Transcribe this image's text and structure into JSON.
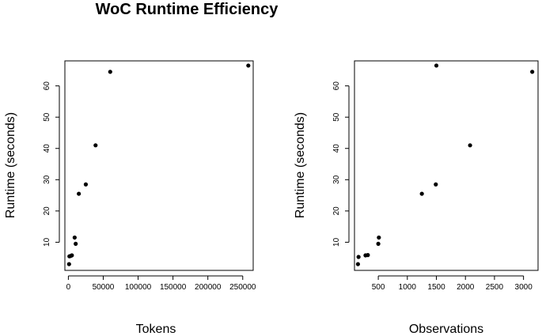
{
  "title": "WoC Runtime Efficiency",
  "chart_data": [
    {
      "type": "scatter",
      "xlabel": "Tokens",
      "ylabel": "Runtime (seconds)",
      "xlim": [
        -5000,
        265000
      ],
      "ylim": [
        1,
        68
      ],
      "xticks": [
        0,
        50000,
        100000,
        150000,
        200000,
        250000
      ],
      "yticks": [
        10,
        20,
        30,
        40,
        50,
        60
      ],
      "grid": false,
      "points": [
        {
          "x": 1000,
          "y": 3
        },
        {
          "x": 1500,
          "y": 5.5
        },
        {
          "x": 3000,
          "y": 5.6
        },
        {
          "x": 5000,
          "y": 5.8
        },
        {
          "x": 9000,
          "y": 11.5
        },
        {
          "x": 10500,
          "y": 9.5
        },
        {
          "x": 15000,
          "y": 25.5
        },
        {
          "x": 25000,
          "y": 28.5
        },
        {
          "x": 39000,
          "y": 41
        },
        {
          "x": 60000,
          "y": 64.5
        },
        {
          "x": 258000,
          "y": 66.5
        }
      ]
    },
    {
      "type": "scatter",
      "xlabel": "Observations",
      "ylabel": "Runtime (seconds)",
      "xlim": [
        90,
        3250
      ],
      "ylim": [
        1,
        68
      ],
      "xticks": [
        500,
        1000,
        1500,
        2000,
        2500,
        3000
      ],
      "yticks": [
        10,
        20,
        30,
        40,
        50,
        60
      ],
      "grid": false,
      "points": [
        {
          "x": 150,
          "y": 3
        },
        {
          "x": 160,
          "y": 5.3
        },
        {
          "x": 280,
          "y": 5.8
        },
        {
          "x": 320,
          "y": 5.9
        },
        {
          "x": 510,
          "y": 11.5
        },
        {
          "x": 500,
          "y": 9.5
        },
        {
          "x": 1250,
          "y": 25.5
        },
        {
          "x": 1490,
          "y": 28.5
        },
        {
          "x": 2080,
          "y": 41
        },
        {
          "x": 1500,
          "y": 66.5
        },
        {
          "x": 3150,
          "y": 64.5
        }
      ]
    }
  ]
}
